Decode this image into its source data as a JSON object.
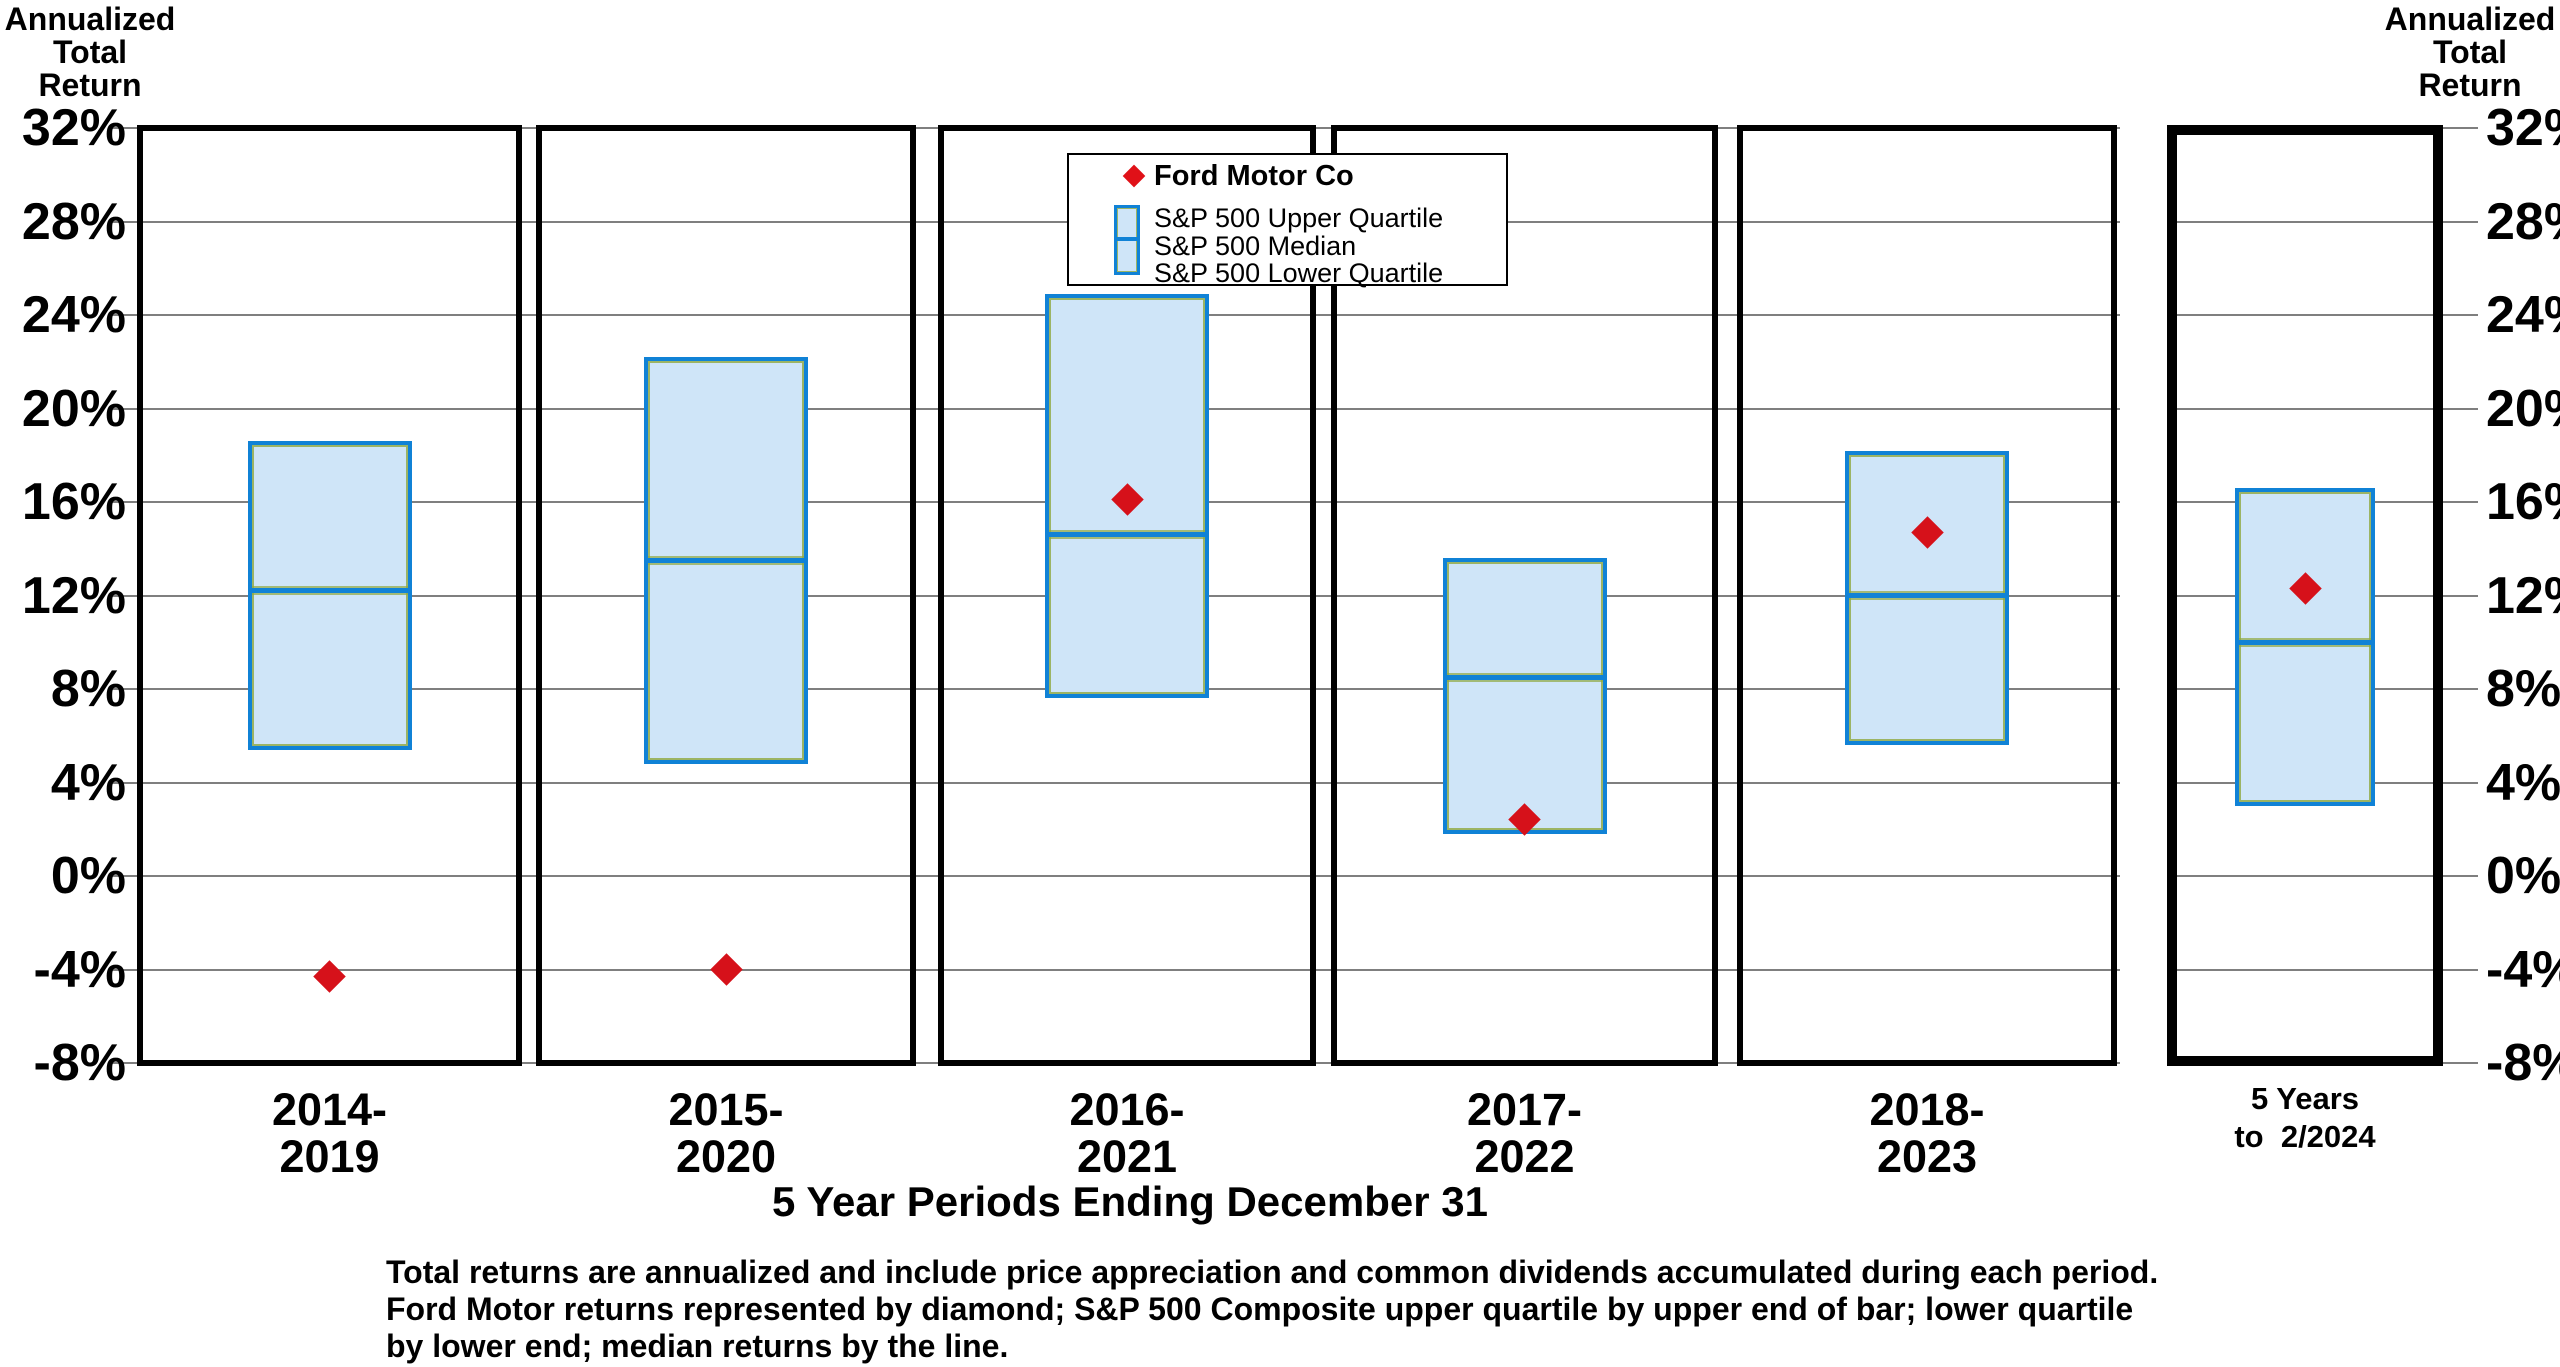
{
  "page": {
    "title_left": [
      "Annualized",
      "Total",
      "Return"
    ],
    "title_right": [
      "Annualized",
      "Total",
      "Return"
    ]
  },
  "y_axis": {
    "tick_labels": [
      "32%",
      "28%",
      "24%",
      "20%",
      "16%",
      "12%",
      "8%",
      "4%",
      "0%",
      "-4%",
      "-8%"
    ],
    "tick_values": [
      32,
      28,
      24,
      20,
      16,
      12,
      8,
      4,
      0,
      -4,
      -8
    ]
  },
  "legend": {
    "ford_label": "Ford Motor Co",
    "upper_label": "S&P 500 Upper Quartile",
    "median_label": "S&P 500 Median",
    "lower_label": "S&P 500 Lower Quartile"
  },
  "x_axis": {
    "title": "5 Year Periods Ending December 31"
  },
  "footnote_lines": [
    "Total returns are annualized and include price appreciation and common dividends accumulated during each period.",
    "Ford Motor returns represented by diamond; S&P 500 Composite upper quartile by upper end of bar; lower quartile",
    "by lower end; median returns by the line."
  ],
  "colors": {
    "box_fill": "#cfe5f8",
    "box_border": "#1082d6",
    "box_accent": "#8fa83e",
    "diamond_red": "#d6111a",
    "gridline_gray": "#7f7f7f",
    "panel_border": "#000000"
  },
  "chart_data": {
    "type": "box-with-point",
    "title": "",
    "xlabel": "5 Year Periods Ending December 31",
    "ylabel": "Annualized Total Return",
    "ylim": [
      -8,
      32
    ],
    "ytick_step": 4,
    "grid": true,
    "legend_position": "top-center",
    "categories": [
      [
        "2014-",
        "2019"
      ],
      [
        "2015-",
        "2020"
      ],
      [
        "2016-",
        "2021"
      ],
      [
        "2017-",
        "2022"
      ],
      [
        "2018-",
        "2023"
      ],
      [
        "5 Years",
        "to  2/2024"
      ]
    ],
    "series": [
      {
        "name": "Ford Motor Co",
        "marker": "diamond",
        "values": [
          -4.3,
          -4.0,
          16.1,
          2.4,
          14.7,
          12.3
        ]
      },
      {
        "name": "S&P 500 Upper Quartile",
        "marker": "box-top",
        "values": [
          18.6,
          22.2,
          24.9,
          13.6,
          18.2,
          16.6
        ]
      },
      {
        "name": "S&P 500 Median",
        "marker": "box-line",
        "values": [
          12.2,
          13.5,
          14.6,
          8.5,
          12.0,
          10.0
        ]
      },
      {
        "name": "S&P 500 Lower Quartile",
        "marker": "box-bottom",
        "values": [
          5.4,
          4.8,
          7.6,
          1.8,
          5.6,
          3.0
        ]
      }
    ]
  }
}
